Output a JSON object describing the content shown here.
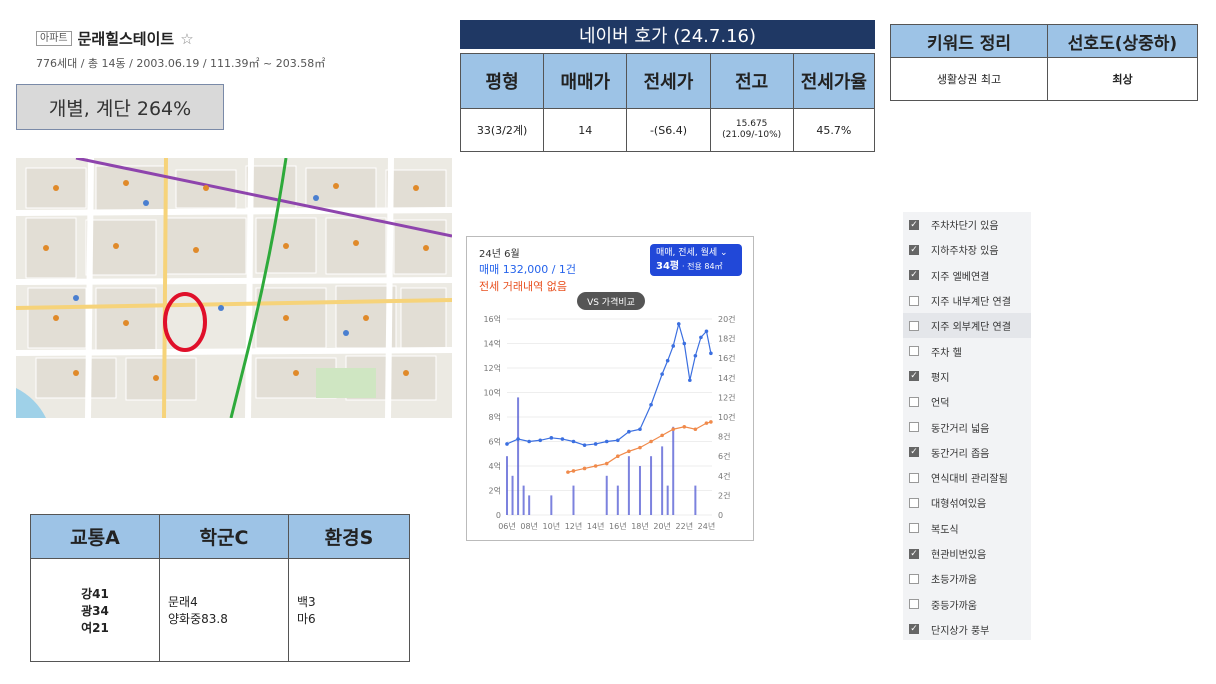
{
  "apartment": {
    "tag": "아파트",
    "name": "문래힐스테이트",
    "star": "☆",
    "info": "776세대 / 총 14동 / 2003.06.19 / 111.39㎡ ~ 203.58㎡",
    "ratio_label": "개별, 계단 264%"
  },
  "naver_quote": {
    "title": "네이버 호가 (24.7.16)",
    "headers": [
      "평형",
      "매매가",
      "전세가",
      "전고",
      "전세가율"
    ],
    "row": [
      "33(3/2계)",
      "14",
      "-(S6.4)",
      "15.675\n(21.09/-10%)",
      "45.7%"
    ]
  },
  "keyword_table": {
    "headers": [
      "키워드 정리",
      "선호도(상중하)"
    ],
    "row": [
      "생활상권 최고",
      "최상"
    ]
  },
  "chart_card": {
    "period": "24년 6월",
    "sale_line": "매매 132,000 / 1건",
    "jeonse_line": "전세 거래내역 없음",
    "filter_label": "매매, 전세, 월세 ⌄",
    "filter_area": "34평",
    "filter_sub": "· 전용 84㎡",
    "vs_label": "VS 가격비교"
  },
  "chart_data": {
    "type": "line",
    "x_ticks": [
      "06년",
      "08년",
      "10년",
      "12년",
      "14년",
      "16년",
      "18년",
      "20년",
      "22년",
      "24년"
    ],
    "y_left_ticks": [
      "0",
      "2억",
      "4억",
      "6억",
      "8억",
      "10억",
      "12억",
      "14억",
      "16억"
    ],
    "y_right_ticks": [
      "0",
      "2건",
      "4건",
      "6건",
      "8건",
      "10건",
      "12건",
      "14건",
      "16건",
      "18건",
      "20건"
    ],
    "ylim_left": [
      0,
      16
    ],
    "ylim_right": [
      0,
      20
    ],
    "series": [
      {
        "color": "#3b6fe0",
        "x": [
          2006,
          2007,
          2008,
          2009,
          2010,
          2011,
          2012,
          2013,
          2014,
          2015,
          2016,
          2017,
          2018,
          2019,
          2020,
          2020.5,
          2021,
          2021.5,
          2022,
          2022.5,
          2023,
          2023.5,
          2024,
          2024.4
        ],
        "y": [
          5.8,
          6.2,
          6.0,
          6.1,
          6.3,
          6.2,
          6.0,
          5.7,
          5.8,
          6.0,
          6.1,
          6.8,
          7.0,
          9.0,
          11.5,
          12.6,
          13.8,
          15.6,
          14.0,
          11.0,
          13.0,
          14.5,
          15.0,
          13.2
        ]
      },
      {
        "color": "#f08a4b",
        "x": [
          2011.5,
          2012,
          2013,
          2014,
          2015,
          2016,
          2017,
          2018,
          2019,
          2020,
          2021,
          2022,
          2023,
          2024,
          2024.4
        ],
        "y": [
          3.5,
          3.6,
          3.8,
          4.0,
          4.2,
          4.8,
          5.2,
          5.5,
          6.0,
          6.5,
          7.0,
          7.2,
          7.0,
          7.5,
          7.6
        ]
      }
    ],
    "bars": {
      "x": [
        2006,
        2006.5,
        2007,
        2007.5,
        2008,
        2010,
        2012,
        2015,
        2016,
        2017,
        2018,
        2019,
        2020,
        2020.5,
        2021,
        2023
      ],
      "counts": [
        6,
        4,
        12,
        3,
        2,
        2,
        3,
        4,
        3,
        6,
        5,
        6,
        7,
        3,
        9,
        3
      ],
      "color": "#5b63d6"
    }
  },
  "score_table": {
    "headers": [
      "교통A",
      "학군C",
      "환경S"
    ],
    "cells": [
      "강41\n광34\n여21",
      "문래4\n양화중83.8",
      "백3\n마6"
    ]
  },
  "checklist": [
    {
      "label": "주차차단기 있음",
      "checked": true
    },
    {
      "label": "지하주차장 있음",
      "checked": true
    },
    {
      "label": "지주 엘베연결",
      "checked": true
    },
    {
      "label": "지주 내부계단 연결",
      "checked": false
    },
    {
      "label": "지주 외부계단 연결",
      "checked": false
    },
    {
      "label": "주차 헬",
      "checked": false
    },
    {
      "label": "평지",
      "checked": true
    },
    {
      "label": "언덕",
      "checked": false
    },
    {
      "label": "동간거리 넓음",
      "checked": false
    },
    {
      "label": "동간거리 좁음",
      "checked": true
    },
    {
      "label": "연식대비 관리잘됨",
      "checked": false
    },
    {
      "label": "대형섞여있음",
      "checked": false
    },
    {
      "label": "복도식",
      "checked": false
    },
    {
      "label": "현관비번있음",
      "checked": true
    },
    {
      "label": "초등가까움",
      "checked": false
    },
    {
      "label": "중등가까움",
      "checked": false
    },
    {
      "label": "단지상가 풍부",
      "checked": true
    }
  ],
  "colors": {
    "header_navy": "#1f3864",
    "header_blue": "#9dc3e6",
    "map_marker": "#e0102a"
  }
}
